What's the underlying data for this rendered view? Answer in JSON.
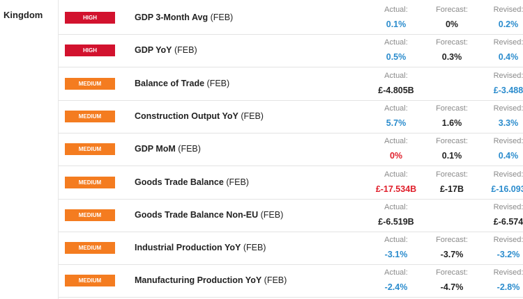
{
  "country": "Kingdom",
  "labels": {
    "actual": "Actual:",
    "forecast": "Forecast:",
    "revised": "Revised:"
  },
  "rows": [
    {
      "importance": "HIGH",
      "badge_color": "#d2122e",
      "event": "GDP 3-Month Avg",
      "period": "(FEB)",
      "actual": "0.1%",
      "actual_color": "#2b8ccd",
      "forecast": "0%",
      "revised": "0.2%",
      "revised_color": "#2b8ccd"
    },
    {
      "importance": "HIGH",
      "badge_color": "#d2122e",
      "event": "GDP YoY",
      "period": "(FEB)",
      "actual": "0.5%",
      "actual_color": "#2b8ccd",
      "forecast": "0.3%",
      "revised": "0.4%",
      "revised_color": "#2b8ccd"
    },
    {
      "importance": "MEDIUM",
      "badge_color": "#f47c20",
      "event": "Balance of Trade",
      "period": "(FEB)",
      "actual": "£-4.805B",
      "actual_color": "#222222",
      "forecast": null,
      "revised": "£-3.488",
      "revised_color": "#2b8ccd"
    },
    {
      "importance": "MEDIUM",
      "badge_color": "#f47c20",
      "event": "Construction Output YoY",
      "period": "(FEB)",
      "actual": "5.7%",
      "actual_color": "#2b8ccd",
      "forecast": "1.6%",
      "revised": "3.3%",
      "revised_color": "#2b8ccd"
    },
    {
      "importance": "MEDIUM",
      "badge_color": "#f47c20",
      "event": "GDP MoM",
      "period": "(FEB)",
      "actual": "0%",
      "actual_color": "#e0202c",
      "forecast": "0.1%",
      "revised": "0.4%",
      "revised_color": "#2b8ccd"
    },
    {
      "importance": "MEDIUM",
      "badge_color": "#f47c20",
      "event": "Goods Trade Balance",
      "period": "(FEB)",
      "actual": "£-17.534B",
      "actual_color": "#e0202c",
      "forecast": "£-17B",
      "revised": "£-16.093",
      "revised_color": "#2b8ccd"
    },
    {
      "importance": "MEDIUM",
      "badge_color": "#f47c20",
      "event": "Goods Trade Balance Non-EU",
      "period": "(FEB)",
      "actual": "£-6.519B",
      "actual_color": "#222222",
      "forecast": null,
      "revised": "£-6.574",
      "revised_color": "#222222"
    },
    {
      "importance": "MEDIUM",
      "badge_color": "#f47c20",
      "event": "Industrial Production YoY",
      "period": "(FEB)",
      "actual": "-3.1%",
      "actual_color": "#2b8ccd",
      "forecast": "-3.7%",
      "revised": "-3.2%",
      "revised_color": "#2b8ccd"
    },
    {
      "importance": "MEDIUM",
      "badge_color": "#f47c20",
      "event": "Manufacturing Production YoY",
      "period": "(FEB)",
      "actual": "-2.4%",
      "actual_color": "#2b8ccd",
      "forecast": "-4.7%",
      "revised": "-2.8%",
      "revised_color": "#2b8ccd"
    }
  ]
}
